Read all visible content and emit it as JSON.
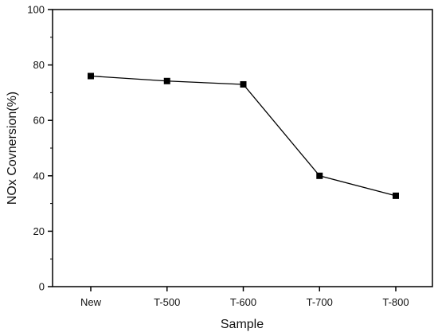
{
  "chart_data": {
    "type": "line",
    "title": "",
    "xlabel": "Sample",
    "ylabel": "NOx Covnersion(%)",
    "categories": [
      "New",
      "T-500",
      "T-600",
      "T-700",
      "T-800"
    ],
    "series": [
      {
        "values": [
          76,
          74.2,
          73,
          40,
          32.8
        ],
        "color": "#000000",
        "marker": "square"
      }
    ],
    "ylim": [
      0,
      100
    ],
    "yticks": [
      "0",
      "20",
      "40",
      "60",
      "80",
      "100"
    ],
    "grid": false,
    "legend": "none"
  }
}
